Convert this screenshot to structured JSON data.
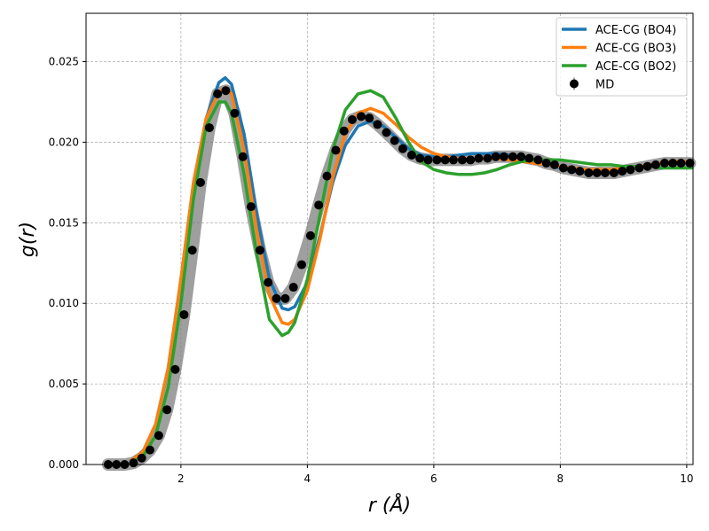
{
  "chart_data": {
    "type": "line",
    "xlabel": "r (Å)",
    "ylabel": "g(r)",
    "xlim": [
      0.5,
      10.1
    ],
    "ylim": [
      0,
      0.028
    ],
    "xticks": [
      2,
      4,
      6,
      8,
      10
    ],
    "xtick_labels": [
      "2",
      "4",
      "6",
      "8",
      "10"
    ],
    "yticks": [
      0.0,
      0.005,
      0.01,
      0.015,
      0.02,
      0.025
    ],
    "ytick_labels": [
      "0.000",
      "0.005",
      "0.010",
      "0.015",
      "0.020",
      "0.025"
    ],
    "grid": true,
    "legend_position": "top-right",
    "series": [
      {
        "name": "ACE-CG (BO4)",
        "color": "#1f77b4",
        "x": [
          1.2,
          1.4,
          1.6,
          1.8,
          2.0,
          2.2,
          2.4,
          2.6,
          2.7,
          2.8,
          3.0,
          3.2,
          3.4,
          3.6,
          3.7,
          3.8,
          4.0,
          4.2,
          4.4,
          4.6,
          4.8,
          5.0,
          5.2,
          5.4,
          5.6,
          5.8,
          6.0,
          6.2,
          6.4,
          6.6,
          6.8,
          7.0,
          7.2,
          7.4,
          7.6,
          7.8,
          8.0,
          8.2,
          8.4,
          8.6,
          8.8,
          9.0,
          9.2,
          9.4,
          9.6,
          9.8,
          10.0,
          10.1
        ],
        "y": [
          0.0002,
          0.0008,
          0.0025,
          0.006,
          0.0115,
          0.0175,
          0.0215,
          0.0237,
          0.024,
          0.0236,
          0.0205,
          0.0155,
          0.0115,
          0.0097,
          0.0096,
          0.0098,
          0.0113,
          0.0142,
          0.0175,
          0.0198,
          0.021,
          0.0213,
          0.021,
          0.0203,
          0.0196,
          0.0192,
          0.0191,
          0.0191,
          0.0192,
          0.0193,
          0.0193,
          0.0193,
          0.0192,
          0.019,
          0.0188,
          0.0186,
          0.0184,
          0.0182,
          0.0181,
          0.0181,
          0.0182,
          0.0184,
          0.0185,
          0.0186,
          0.0187,
          0.0187,
          0.0187,
          0.0187
        ]
      },
      {
        "name": "ACE-CG (BO3)",
        "color": "#ff7f0e",
        "x": [
          1.2,
          1.4,
          1.6,
          1.8,
          2.0,
          2.2,
          2.4,
          2.6,
          2.7,
          2.8,
          3.0,
          3.2,
          3.4,
          3.6,
          3.7,
          3.8,
          4.0,
          4.2,
          4.4,
          4.6,
          4.8,
          5.0,
          5.2,
          5.4,
          5.6,
          5.8,
          6.0,
          6.2,
          6.4,
          6.6,
          6.8,
          7.0,
          7.2,
          7.4,
          7.6,
          7.8,
          8.0,
          8.2,
          8.4,
          8.6,
          8.8,
          9.0,
          9.2,
          9.4,
          9.6,
          9.8,
          10.0,
          10.1
        ],
        "y": [
          0.0002,
          0.0008,
          0.0025,
          0.006,
          0.0115,
          0.0175,
          0.0215,
          0.0231,
          0.0234,
          0.023,
          0.0195,
          0.0145,
          0.0105,
          0.0088,
          0.0087,
          0.009,
          0.0108,
          0.014,
          0.0178,
          0.0205,
          0.0218,
          0.0221,
          0.0218,
          0.0211,
          0.0203,
          0.0197,
          0.0193,
          0.0191,
          0.019,
          0.019,
          0.019,
          0.019,
          0.0189,
          0.0188,
          0.0187,
          0.0186,
          0.0185,
          0.0184,
          0.0183,
          0.0183,
          0.0183,
          0.0184,
          0.0185,
          0.0186,
          0.0187,
          0.0188,
          0.0188,
          0.0188
        ]
      },
      {
        "name": "ACE-CG (BO2)",
        "color": "#2ca02c",
        "x": [
          1.2,
          1.4,
          1.6,
          1.8,
          2.0,
          2.2,
          2.4,
          2.6,
          2.7,
          2.8,
          3.0,
          3.2,
          3.4,
          3.6,
          3.7,
          3.8,
          4.0,
          4.2,
          4.4,
          4.6,
          4.8,
          5.0,
          5.2,
          5.4,
          5.6,
          5.8,
          6.0,
          6.2,
          6.4,
          6.6,
          6.8,
          7.0,
          7.2,
          7.4,
          7.6,
          7.8,
          8.0,
          8.2,
          8.4,
          8.6,
          8.8,
          9.0,
          9.2,
          9.4,
          9.6,
          9.8,
          10.0,
          10.1
        ],
        "y": [
          0.0001,
          0.0005,
          0.0018,
          0.0048,
          0.01,
          0.0165,
          0.021,
          0.0225,
          0.0225,
          0.0218,
          0.018,
          0.013,
          0.009,
          0.008,
          0.0082,
          0.0088,
          0.0115,
          0.0155,
          0.0195,
          0.022,
          0.023,
          0.0232,
          0.0228,
          0.0215,
          0.02,
          0.0188,
          0.0183,
          0.0181,
          0.018,
          0.018,
          0.0181,
          0.0183,
          0.0186,
          0.0188,
          0.0189,
          0.0189,
          0.0189,
          0.0188,
          0.0187,
          0.0186,
          0.0186,
          0.0185,
          0.0185,
          0.0185,
          0.0184,
          0.0184,
          0.0184,
          0.0184
        ]
      }
    ],
    "md": {
      "name": "MD",
      "color": "#000000",
      "x": [
        0.85,
        0.98,
        1.11,
        1.25,
        1.38,
        1.51,
        1.65,
        1.78,
        1.91,
        2.05,
        2.18,
        2.31,
        2.45,
        2.58,
        2.71,
        2.85,
        2.98,
        3.11,
        3.25,
        3.38,
        3.51,
        3.65,
        3.78,
        3.91,
        4.05,
        4.18,
        4.31,
        4.45,
        4.58,
        4.71,
        4.85,
        4.98,
        5.11,
        5.25,
        5.38,
        5.51,
        5.65,
        5.78,
        5.91,
        6.05,
        6.18,
        6.31,
        6.45,
        6.58,
        6.71,
        6.85,
        6.98,
        7.11,
        7.25,
        7.38,
        7.51,
        7.65,
        7.78,
        7.91,
        8.05,
        8.18,
        8.31,
        8.45,
        8.58,
        8.71,
        8.85,
        8.98,
        9.11,
        9.25,
        9.38,
        9.51,
        9.65,
        9.78,
        9.91,
        10.05
      ],
      "y": [
        0.0,
        0.0,
        0.0,
        0.0001,
        0.0004,
        0.0009,
        0.0018,
        0.0034,
        0.0059,
        0.0093,
        0.0133,
        0.0175,
        0.0209,
        0.023,
        0.0232,
        0.0218,
        0.0191,
        0.016,
        0.0133,
        0.0113,
        0.0103,
        0.0103,
        0.011,
        0.0124,
        0.0142,
        0.0161,
        0.0179,
        0.0195,
        0.0207,
        0.0214,
        0.0216,
        0.0215,
        0.0211,
        0.0206,
        0.0201,
        0.0196,
        0.0192,
        0.019,
        0.0189,
        0.0189,
        0.0189,
        0.0189,
        0.0189,
        0.0189,
        0.019,
        0.019,
        0.0191,
        0.0191,
        0.0191,
        0.0191,
        0.019,
        0.0189,
        0.0187,
        0.0186,
        0.0184,
        0.0183,
        0.0182,
        0.0181,
        0.0181,
        0.0181,
        0.0181,
        0.0182,
        0.0183,
        0.0184,
        0.0185,
        0.0186,
        0.0187,
        0.0187,
        0.0187,
        0.0187
      ]
    },
    "uncertainty_band_color": "#7f7f7f"
  }
}
